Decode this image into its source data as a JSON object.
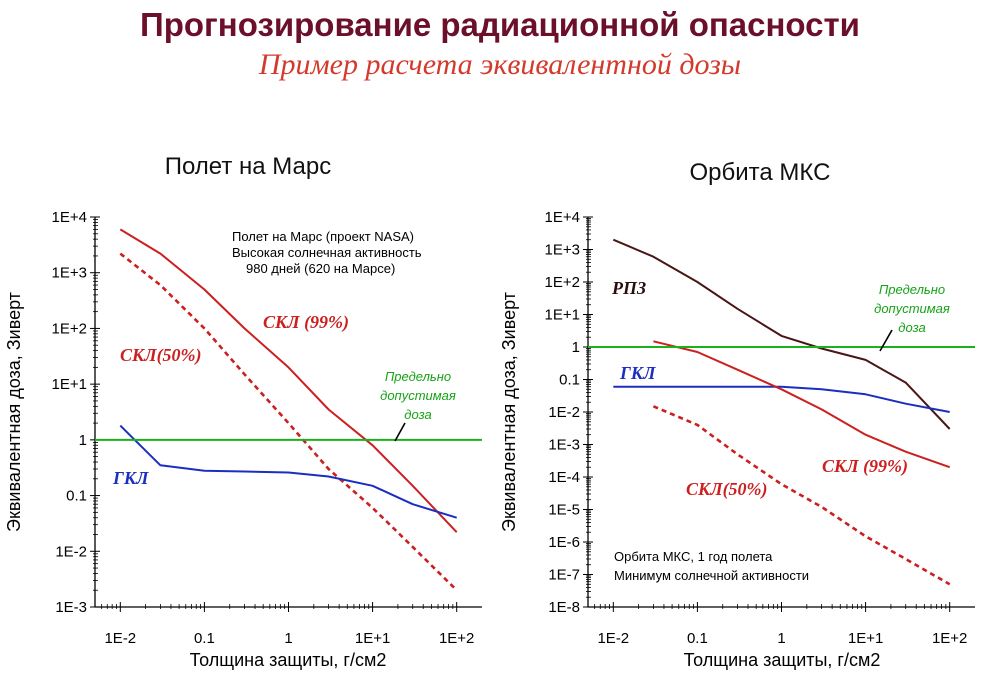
{
  "header": {
    "title": "Прогнозирование радиационной опасности",
    "subtitle": "Пример расчета эквивалентной дозы"
  },
  "chart_data": [
    {
      "type": "line",
      "title": "Полет на Марс",
      "xlabel": "Толщина защиты, г/см2",
      "ylabel": "Эквивалентная доза, Зиверт",
      "x_scale": "log",
      "y_scale": "log",
      "xlim": [
        0.005,
        200
      ],
      "ylim": [
        0.001,
        10000
      ],
      "x_ticks": [
        "1E-2",
        "0.1",
        "1",
        "1E+1",
        "1E+2"
      ],
      "y_ticks": [
        "1E-3",
        "1E-2",
        "0.1",
        "1",
        "1E+1",
        "1E+2",
        "1E+3",
        "1E+4"
      ],
      "grid": false,
      "annotation": [
        "Полет на Марс (проект NASA)",
        "Высокая солнечная активность",
        "980 дней (620 на Марсе)"
      ],
      "limit_label": [
        "Предельно",
        "допустимая",
        "доза"
      ],
      "series": [
        {
          "name": "СКЛ (99%)",
          "color": "#cc1f1f",
          "style": "solid",
          "x": [
            0.01,
            0.03,
            0.1,
            0.3,
            1,
            3,
            10,
            30,
            100
          ],
          "y": [
            6000,
            2200,
            500,
            100,
            20,
            3.5,
            0.8,
            0.15,
            0.022
          ]
        },
        {
          "name": "СКЛ(50%)",
          "color": "#cc1f1f",
          "style": "dashed",
          "x": [
            0.01,
            0.03,
            0.1,
            0.3,
            1,
            3,
            10,
            30,
            100
          ],
          "y": [
            2200,
            600,
            100,
            15,
            2,
            0.3,
            0.06,
            0.012,
            0.002
          ]
        },
        {
          "name": "ГКЛ",
          "color": "#1a2fbf",
          "style": "solid",
          "x": [
            0.01,
            0.03,
            0.1,
            0.3,
            1,
            3,
            10,
            30,
            100
          ],
          "y": [
            1.8,
            0.35,
            0.28,
            0.27,
            0.26,
            0.22,
            0.15,
            0.07,
            0.04
          ]
        },
        {
          "name": "Предельно допустимая доза",
          "color": "#19b319",
          "style": "solid",
          "x": [
            0.005,
            200
          ],
          "y": [
            1,
            1
          ]
        }
      ]
    },
    {
      "type": "line",
      "title": "Орбита МКС",
      "xlabel": "Толщина защиты, г/см2",
      "ylabel": "Эквивалентная доза, Зиверт",
      "x_scale": "log",
      "y_scale": "log",
      "xlim": [
        0.005,
        200
      ],
      "ylim": [
        1e-08,
        10000
      ],
      "x_ticks": [
        "1E-2",
        "0.1",
        "1",
        "1E+1",
        "1E+2"
      ],
      "y_ticks": [
        "1E-8",
        "1E-7",
        "1E-6",
        "1E-5",
        "1E-4",
        "1E-3",
        "1E-2",
        "0.1",
        "1",
        "1E+1",
        "1E+2",
        "1E+3",
        "1E+4"
      ],
      "grid": false,
      "annotation": [
        "Орбита МКС, 1 год полета",
        "Минимум солнечной активности"
      ],
      "limit_label": [
        "Предельно",
        "допустимая",
        "доза"
      ],
      "series": [
        {
          "name": "РПЗ",
          "color": "#4a1515",
          "style": "solid",
          "x": [
            0.01,
            0.03,
            0.1,
            0.3,
            1,
            3,
            10,
            30,
            100
          ],
          "y": [
            2000,
            600,
            100,
            15,
            2.2,
            0.9,
            0.4,
            0.08,
            0.003
          ]
        },
        {
          "name": "ГКЛ",
          "color": "#1a2fbf",
          "style": "solid",
          "x": [
            0.01,
            0.03,
            0.1,
            0.3,
            1,
            3,
            10,
            30,
            100
          ],
          "y": [
            0.06,
            0.06,
            0.06,
            0.06,
            0.06,
            0.05,
            0.035,
            0.018,
            0.01
          ]
        },
        {
          "name": "СКЛ (99%)",
          "color": "#cc1f1f",
          "style": "solid",
          "x": [
            0.03,
            0.1,
            0.3,
            1,
            3,
            10,
            30,
            100
          ],
          "y": [
            1.5,
            0.7,
            0.2,
            0.05,
            0.012,
            0.002,
            0.0006,
            0.0002
          ]
        },
        {
          "name": "СКЛ(50%)",
          "color": "#cc1f1f",
          "style": "dashed",
          "x": [
            0.03,
            0.1,
            0.3,
            1,
            3,
            10,
            30,
            100
          ],
          "y": [
            0.015,
            0.004,
            0.0005,
            6e-05,
            1.2e-05,
            1.5e-06,
            3e-07,
            5e-08
          ]
        },
        {
          "name": "Предельно допустимая доза",
          "color": "#19b319",
          "style": "solid",
          "x": [
            0.005,
            200
          ],
          "y": [
            1,
            1
          ]
        }
      ]
    }
  ]
}
